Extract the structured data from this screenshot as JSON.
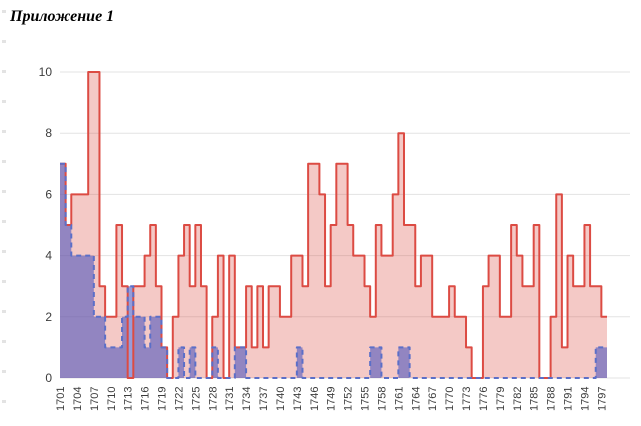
{
  "page": {
    "title": "Приложение 1"
  },
  "chart_data": {
    "type": "area",
    "subtype": "step",
    "title": "",
    "xlabel": "",
    "ylabel": "",
    "x_start_year": 1701,
    "x_end_year": 1797,
    "x_tick_step": 3,
    "x_tick_labels": [
      "1701",
      "1704",
      "1707",
      "1710",
      "1713",
      "1716",
      "1719",
      "1722",
      "1725",
      "1728",
      "1731",
      "1734",
      "1737",
      "1740",
      "1743",
      "1746",
      "1749",
      "1752",
      "1755",
      "1758",
      "1761",
      "1764",
      "1767",
      "1770",
      "1773",
      "1776",
      "1779",
      "1782",
      "1785",
      "1788",
      "1791",
      "1794",
      "1797"
    ],
    "ylim": [
      0,
      10
    ],
    "yticks": [
      0,
      2,
      4,
      6,
      8,
      10
    ],
    "grid": true,
    "legend": "none",
    "colors": {
      "red_line": "#dc4b43",
      "red_fill": "rgba(220,75,67,0.30)",
      "blue_line": "#5b6fc8",
      "blue_fill": "rgba(75,85,190,0.58)",
      "gridline": "#e3e3e3",
      "tick_text": "#3c3c3c"
    },
    "series": [
      {
        "name": "red-series",
        "line_style": "solid",
        "values": [
          7,
          5,
          6,
          6,
          6,
          10,
          10,
          3,
          2,
          2,
          5,
          3,
          0,
          3,
          3,
          4,
          5,
          3,
          1,
          0,
          2,
          4,
          5,
          3,
          5,
          3,
          0,
          2,
          4,
          0,
          4,
          1,
          1,
          3,
          1,
          3,
          1,
          3,
          3,
          2,
          2,
          4,
          4,
          3,
          7,
          7,
          6,
          3,
          5,
          7,
          7,
          5,
          4,
          4,
          3,
          2,
          5,
          4,
          4,
          6,
          8,
          5,
          5,
          3,
          4,
          4,
          2,
          2,
          2,
          3,
          2,
          2,
          1,
          0,
          0,
          3,
          4,
          4,
          2,
          2,
          5,
          4,
          3,
          3,
          5,
          0,
          0,
          2,
          6,
          1,
          4,
          3,
          3,
          5,
          3,
          3,
          2
        ]
      },
      {
        "name": "blue-series",
        "line_style": "dashed",
        "values": [
          7,
          5,
          4,
          4,
          4,
          4,
          2,
          2,
          1,
          1,
          1,
          2,
          3,
          2,
          2,
          1,
          2,
          2,
          1,
          0,
          0,
          1,
          0,
          1,
          0,
          0,
          0,
          1,
          0,
          0,
          0,
          1,
          1,
          0,
          0,
          0,
          0,
          0,
          0,
          0,
          0,
          0,
          1,
          0,
          0,
          0,
          0,
          0,
          0,
          0,
          0,
          0,
          0,
          0,
          0,
          1,
          1,
          0,
          0,
          0,
          1,
          1,
          0,
          0,
          0,
          0,
          0,
          0,
          0,
          0,
          0,
          0,
          0,
          0,
          0,
          0,
          0,
          0,
          0,
          0,
          0,
          0,
          0,
          0,
          0,
          0,
          0,
          0,
          0,
          0,
          0,
          0,
          0,
          0,
          0,
          1,
          1
        ]
      }
    ]
  }
}
